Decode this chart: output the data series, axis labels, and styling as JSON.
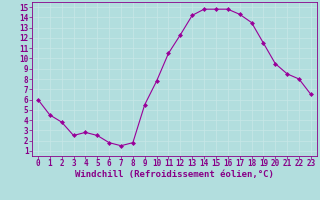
{
  "x": [
    0,
    1,
    2,
    3,
    4,
    5,
    6,
    7,
    8,
    9,
    10,
    11,
    12,
    13,
    14,
    15,
    16,
    17,
    18,
    19,
    20,
    21,
    22,
    23
  ],
  "y": [
    6,
    4.5,
    3.8,
    2.5,
    2.8,
    2.5,
    1.8,
    1.5,
    1.8,
    5.5,
    7.8,
    10.5,
    12.3,
    14.2,
    14.8,
    14.8,
    14.8,
    14.3,
    13.5,
    11.5,
    9.5,
    8.5,
    8.0,
    6.5
  ],
  "line_color": "#990099",
  "marker": "D",
  "marker_size": 2.0,
  "bg_color": "#b2dede",
  "grid_color": "#c8e8e8",
  "xlabel": "Windchill (Refroidissement éolien,°C)",
  "xlim": [
    -0.5,
    23.5
  ],
  "ylim": [
    0.5,
    15.5
  ],
  "yticks": [
    1,
    2,
    3,
    4,
    5,
    6,
    7,
    8,
    9,
    10,
    11,
    12,
    13,
    14,
    15
  ],
  "xticks": [
    0,
    1,
    2,
    3,
    4,
    5,
    6,
    7,
    8,
    9,
    10,
    11,
    12,
    13,
    14,
    15,
    16,
    17,
    18,
    19,
    20,
    21,
    22,
    23
  ],
  "tick_color": "#880088",
  "tick_fontsize": 5.5,
  "xlabel_fontsize": 6.5,
  "spine_color": "#880088",
  "linewidth": 0.8
}
